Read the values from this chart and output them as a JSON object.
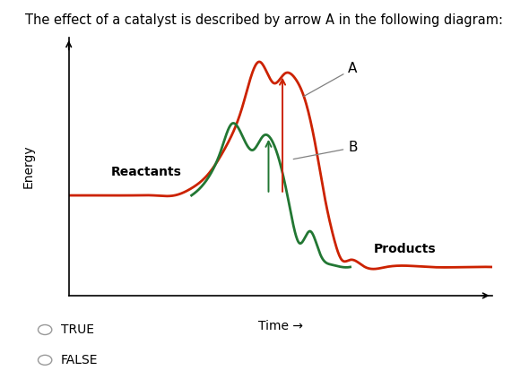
{
  "title": "The effect of a catalyst is described by arrow A in the following diagram:",
  "title_fontsize": 10.5,
  "xlabel": "Time →",
  "ylabel": "Energy",
  "reactants_label": "Reactants",
  "products_label": "Products",
  "arrow_a_label": "A",
  "arrow_b_label": "B",
  "true_label": "TRUE",
  "false_label": "FALSE",
  "reactants_level": 0.42,
  "products_level": 0.12,
  "red_peak": 0.93,
  "green_peak": 0.67,
  "red_color": "#cc2200",
  "green_color": "#227733",
  "bg_color": "#ffffff",
  "line_width": 2.0
}
